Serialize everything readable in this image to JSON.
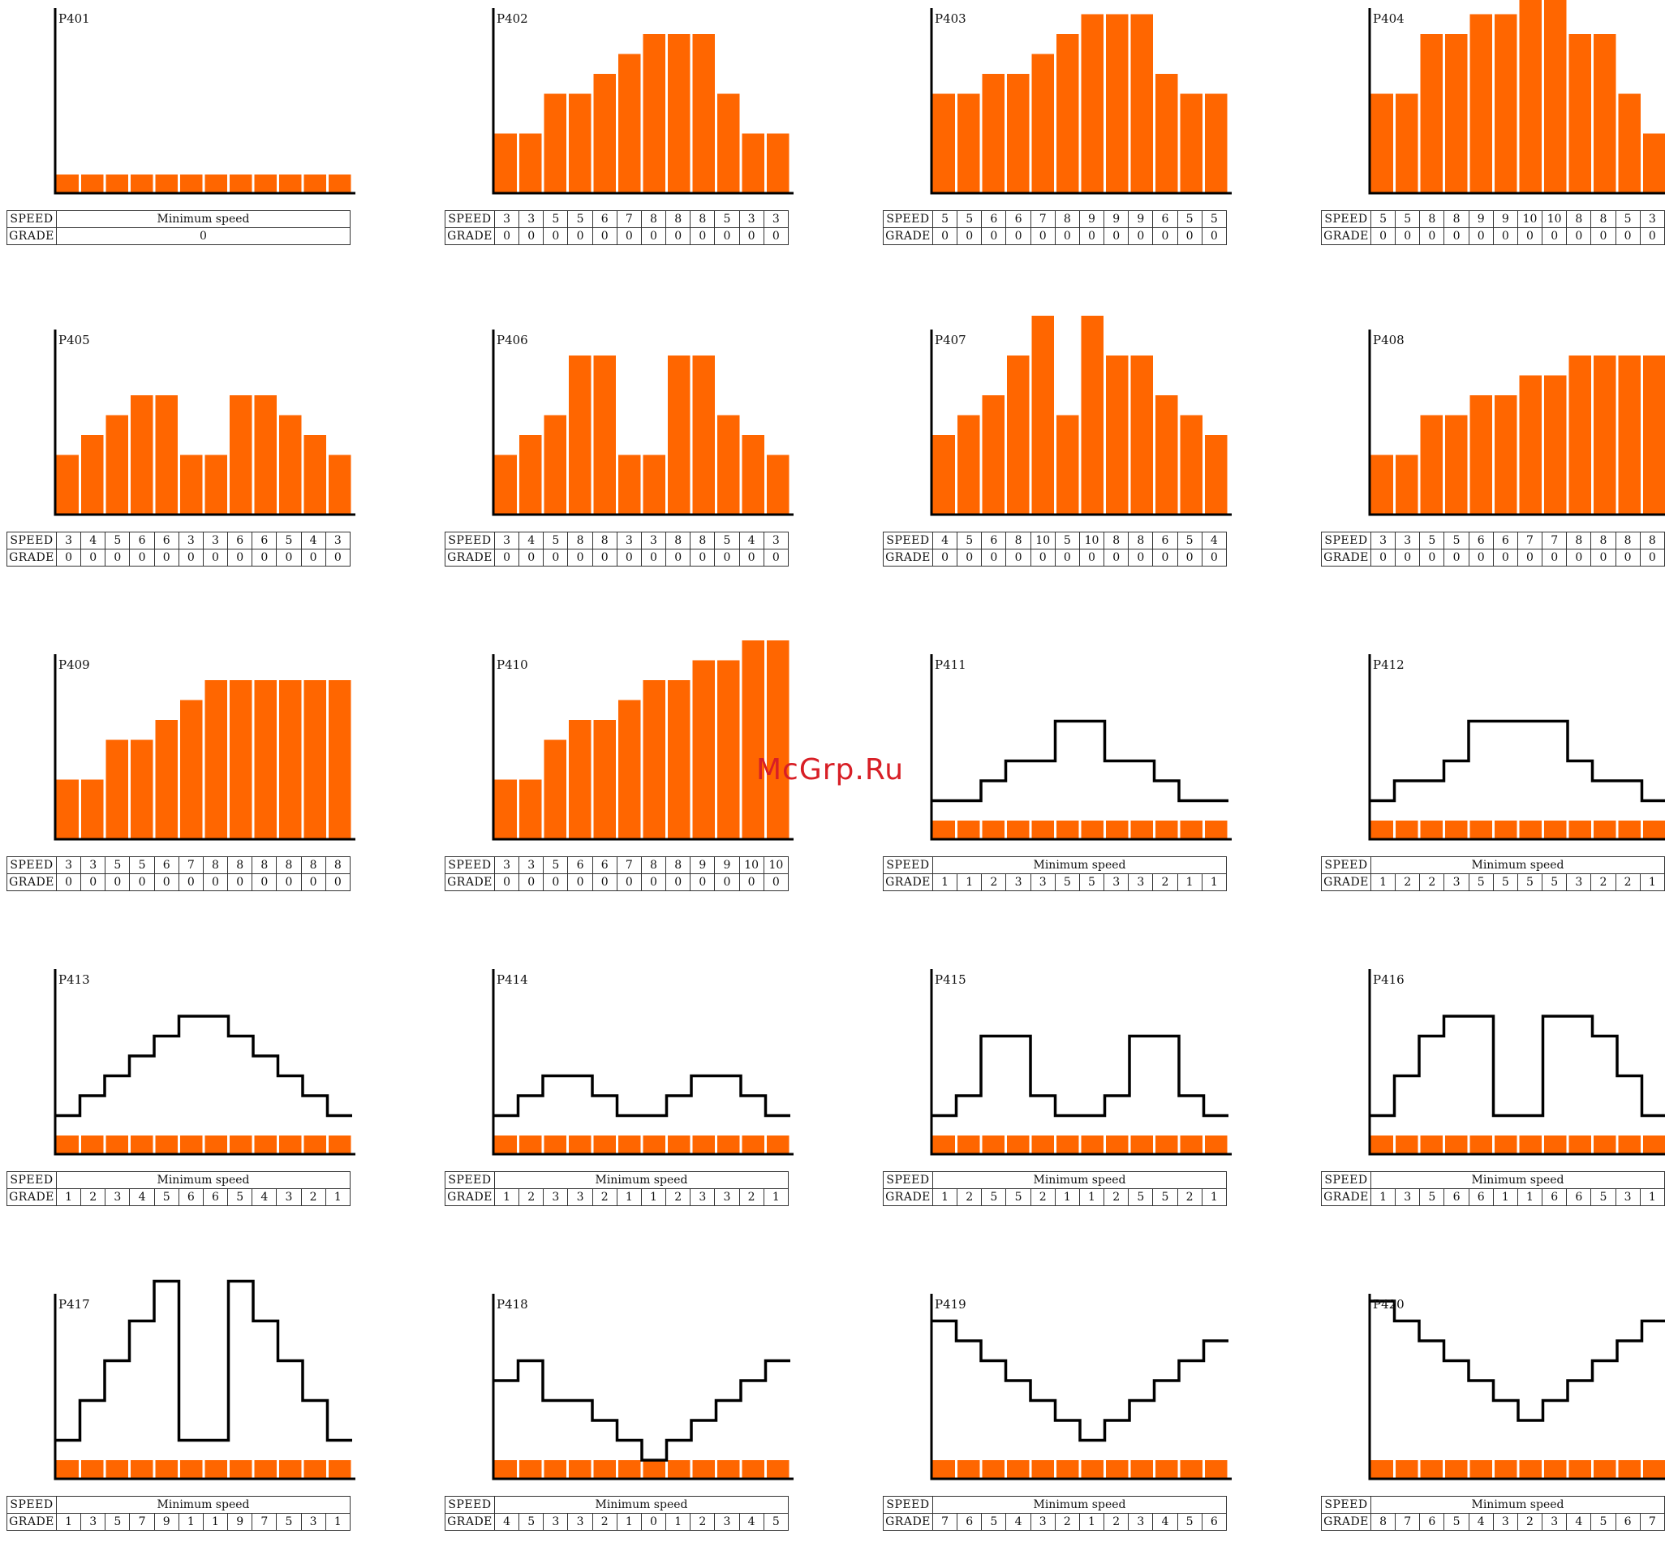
{
  "watermark": "McGrp.Ru",
  "colors": {
    "bar": "#ff6600",
    "axis": "#000000",
    "profile": "#000000"
  },
  "labels": {
    "speed": "SPEED",
    "grade": "GRADE",
    "minimum_speed": "Minimum speed"
  },
  "chart_data": [
    {
      "type": "bar",
      "title": "P401",
      "mode": "min",
      "grade_single": "0",
      "ylim": [
        0,
        10
      ]
    },
    {
      "type": "bar",
      "title": "P402",
      "mode": "speed",
      "ylim": [
        0,
        10
      ],
      "speed": [
        3,
        3,
        5,
        5,
        6,
        7,
        8,
        8,
        8,
        5,
        3,
        3
      ],
      "grade": [
        0,
        0,
        0,
        0,
        0,
        0,
        0,
        0,
        0,
        0,
        0,
        0
      ]
    },
    {
      "type": "bar",
      "title": "P403",
      "mode": "speed",
      "ylim": [
        0,
        10
      ],
      "speed": [
        5,
        5,
        6,
        6,
        7,
        8,
        9,
        9,
        9,
        6,
        5,
        5
      ],
      "grade": [
        0,
        0,
        0,
        0,
        0,
        0,
        0,
        0,
        0,
        0,
        0,
        0
      ]
    },
    {
      "type": "bar",
      "title": "P404",
      "mode": "speed",
      "ylim": [
        0,
        10
      ],
      "speed": [
        5,
        5,
        8,
        8,
        9,
        9,
        10,
        10,
        8,
        8,
        5,
        3
      ],
      "grade": [
        0,
        0,
        0,
        0,
        0,
        0,
        0,
        0,
        0,
        0,
        0,
        0
      ]
    },
    {
      "type": "bar",
      "title": "P405",
      "mode": "speed",
      "ylim": [
        0,
        10
      ],
      "speed": [
        3,
        4,
        5,
        6,
        6,
        3,
        3,
        6,
        6,
        5,
        4,
        3
      ],
      "grade": [
        0,
        0,
        0,
        0,
        0,
        0,
        0,
        0,
        0,
        0,
        0,
        0
      ]
    },
    {
      "type": "bar",
      "title": "P406",
      "mode": "speed",
      "ylim": [
        0,
        10
      ],
      "speed": [
        3,
        4,
        5,
        8,
        8,
        3,
        3,
        8,
        8,
        5,
        4,
        3
      ],
      "grade": [
        0,
        0,
        0,
        0,
        0,
        0,
        0,
        0,
        0,
        0,
        0,
        0
      ]
    },
    {
      "type": "bar",
      "title": "P407",
      "mode": "speed",
      "ylim": [
        0,
        10
      ],
      "speed": [
        4,
        5,
        6,
        8,
        10,
        5,
        10,
        8,
        8,
        6,
        5,
        4
      ],
      "grade": [
        0,
        0,
        0,
        0,
        0,
        0,
        0,
        0,
        0,
        0,
        0,
        0
      ]
    },
    {
      "type": "bar",
      "title": "P408",
      "mode": "speed",
      "ylim": [
        0,
        10
      ],
      "speed": [
        3,
        3,
        5,
        5,
        6,
        6,
        7,
        7,
        8,
        8,
        8,
        8
      ],
      "grade": [
        0,
        0,
        0,
        0,
        0,
        0,
        0,
        0,
        0,
        0,
        0,
        0
      ]
    },
    {
      "type": "bar",
      "title": "P409",
      "mode": "speed",
      "ylim": [
        0,
        10
      ],
      "speed": [
        3,
        3,
        5,
        5,
        6,
        7,
        8,
        8,
        8,
        8,
        8,
        8
      ],
      "grade": [
        0,
        0,
        0,
        0,
        0,
        0,
        0,
        0,
        0,
        0,
        0,
        0
      ]
    },
    {
      "type": "bar",
      "title": "P410",
      "mode": "speed",
      "ylim": [
        0,
        10
      ],
      "speed": [
        3,
        3,
        5,
        6,
        6,
        7,
        8,
        8,
        9,
        9,
        10,
        10
      ],
      "grade": [
        0,
        0,
        0,
        0,
        0,
        0,
        0,
        0,
        0,
        0,
        0,
        0
      ]
    },
    {
      "type": "bar",
      "title": "P411",
      "mode": "grade",
      "ylim": [
        0,
        10
      ],
      "grade": [
        1,
        1,
        2,
        3,
        3,
        5,
        5,
        3,
        3,
        2,
        1,
        1
      ]
    },
    {
      "type": "bar",
      "title": "P412",
      "mode": "grade",
      "ylim": [
        0,
        10
      ],
      "grade": [
        1,
        2,
        2,
        3,
        5,
        5,
        5,
        5,
        3,
        2,
        2,
        1
      ]
    },
    {
      "type": "bar",
      "title": "P413",
      "mode": "grade",
      "ylim": [
        0,
        10
      ],
      "grade": [
        1,
        2,
        3,
        4,
        5,
        6,
        6,
        5,
        4,
        3,
        2,
        1
      ]
    },
    {
      "type": "bar",
      "title": "P414",
      "mode": "grade",
      "ylim": [
        0,
        10
      ],
      "grade": [
        1,
        2,
        3,
        3,
        2,
        1,
        1,
        2,
        3,
        3,
        2,
        1
      ]
    },
    {
      "type": "bar",
      "title": "P415",
      "mode": "grade",
      "ylim": [
        0,
        10
      ],
      "grade": [
        1,
        2,
        5,
        5,
        2,
        1,
        1,
        2,
        5,
        5,
        2,
        1
      ]
    },
    {
      "type": "bar",
      "title": "P416",
      "mode": "grade",
      "ylim": [
        0,
        10
      ],
      "grade": [
        1,
        3,
        5,
        6,
        6,
        1,
        1,
        6,
        6,
        5,
        3,
        1
      ]
    },
    {
      "type": "bar",
      "title": "P417",
      "mode": "grade",
      "ylim": [
        0,
        10
      ],
      "grade": [
        1,
        3,
        5,
        7,
        9,
        1,
        1,
        9,
        7,
        5,
        3,
        1
      ]
    },
    {
      "type": "bar",
      "title": "P418",
      "mode": "grade",
      "ylim": [
        0,
        10
      ],
      "grade": [
        4,
        5,
        3,
        3,
        2,
        1,
        0,
        1,
        2,
        3,
        4,
        5
      ]
    },
    {
      "type": "bar",
      "title": "P419",
      "mode": "grade",
      "ylim": [
        0,
        10
      ],
      "grade": [
        7,
        6,
        5,
        4,
        3,
        2,
        1,
        2,
        3,
        4,
        5,
        6
      ]
    },
    {
      "type": "bar",
      "title": "P420",
      "mode": "grade",
      "ylim": [
        0,
        10
      ],
      "grade": [
        8,
        7,
        6,
        5,
        4,
        3,
        2,
        3,
        4,
        5,
        6,
        7
      ]
    }
  ]
}
